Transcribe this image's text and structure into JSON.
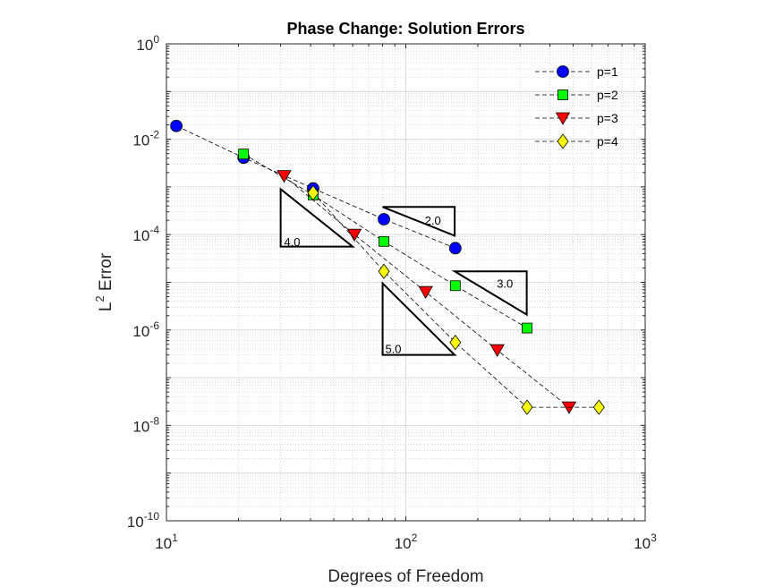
{
  "chart_data": {
    "type": "scatter",
    "title": "Phase Change: Solution Errors",
    "xlabel": "Degrees of Freedom",
    "ylabel": {
      "base": "L",
      "sup": "2",
      "rest": " Error"
    },
    "xscale": "log",
    "yscale": "log",
    "xlim": [
      10,
      1000
    ],
    "ylim": [
      1e-10,
      1
    ],
    "x_ticks": [
      {
        "value": 10,
        "base": "10",
        "exp": "1"
      },
      {
        "value": 100,
        "base": "10",
        "exp": "2"
      },
      {
        "value": 1000,
        "base": "10",
        "exp": "3"
      }
    ],
    "y_ticks": [
      {
        "value": 1,
        "base": "10",
        "exp": "0"
      },
      {
        "value": 0.01,
        "base": "10",
        "exp": "-2"
      },
      {
        "value": 0.0001,
        "base": "10",
        "exp": "-4"
      },
      {
        "value": 1e-06,
        "base": "10",
        "exp": "-6"
      },
      {
        "value": 1e-08,
        "base": "10",
        "exp": "-8"
      },
      {
        "value": 1e-10,
        "base": "10",
        "exp": "-10"
      }
    ],
    "grid": true,
    "minor_grid": true,
    "legend_position": "top-right",
    "series": [
      {
        "name": "p=1",
        "marker": "circle",
        "color": "#0000ff",
        "x": [
          11,
          21,
          41,
          81,
          161
        ],
        "y": [
          0.019,
          0.0041,
          0.00093,
          0.00021,
          5.2e-05
        ]
      },
      {
        "name": "p=2",
        "marker": "square",
        "color": "#00ff00",
        "x": [
          21,
          41,
          81,
          161,
          321
        ],
        "y": [
          0.0049,
          0.00068,
          7.2e-05,
          8.5e-06,
          1.1e-06
        ]
      },
      {
        "name": "p=3",
        "marker": "triangle-down",
        "color": "#ff0000",
        "x": [
          31,
          61,
          121,
          241,
          481
        ],
        "y": [
          0.0017,
          0.0001,
          6.3e-06,
          3.8e-07,
          2.4e-08
        ]
      },
      {
        "name": "p=4",
        "marker": "diamond",
        "color": "#ffff00",
        "x": [
          41,
          81,
          161,
          321,
          641
        ],
        "y": [
          0.00075,
          1.7e-05,
          5.5e-07,
          2.4e-08,
          2.4e-08
        ]
      }
    ],
    "slope_triangles": [
      {
        "label": "2.0",
        "x_left": 80,
        "x_right": 160,
        "y_top": 0.00038,
        "y_bottom": 9.5e-05,
        "right_angle": "top-right",
        "label_x": 120,
        "label_y": 0.0002
      },
      {
        "label": "3.0",
        "x_left": 160,
        "x_right": 320,
        "y_top": 1.7e-05,
        "y_bottom": 2.1e-06,
        "right_angle": "top-right",
        "label_x": 240,
        "label_y": 9.5e-06
      },
      {
        "label": "4.0",
        "x_left": 30,
        "x_right": 60,
        "y_top": 0.0009,
        "y_bottom": 5.6e-05,
        "right_angle": "bottom-left",
        "label_x": 31,
        "label_y": 7.2e-05
      },
      {
        "label": "5.0",
        "x_left": 80,
        "x_right": 160,
        "y_top": 9.5e-06,
        "y_bottom": 3e-07,
        "right_angle": "bottom-left",
        "label_x": 82,
        "label_y": 4.1e-07
      }
    ]
  }
}
